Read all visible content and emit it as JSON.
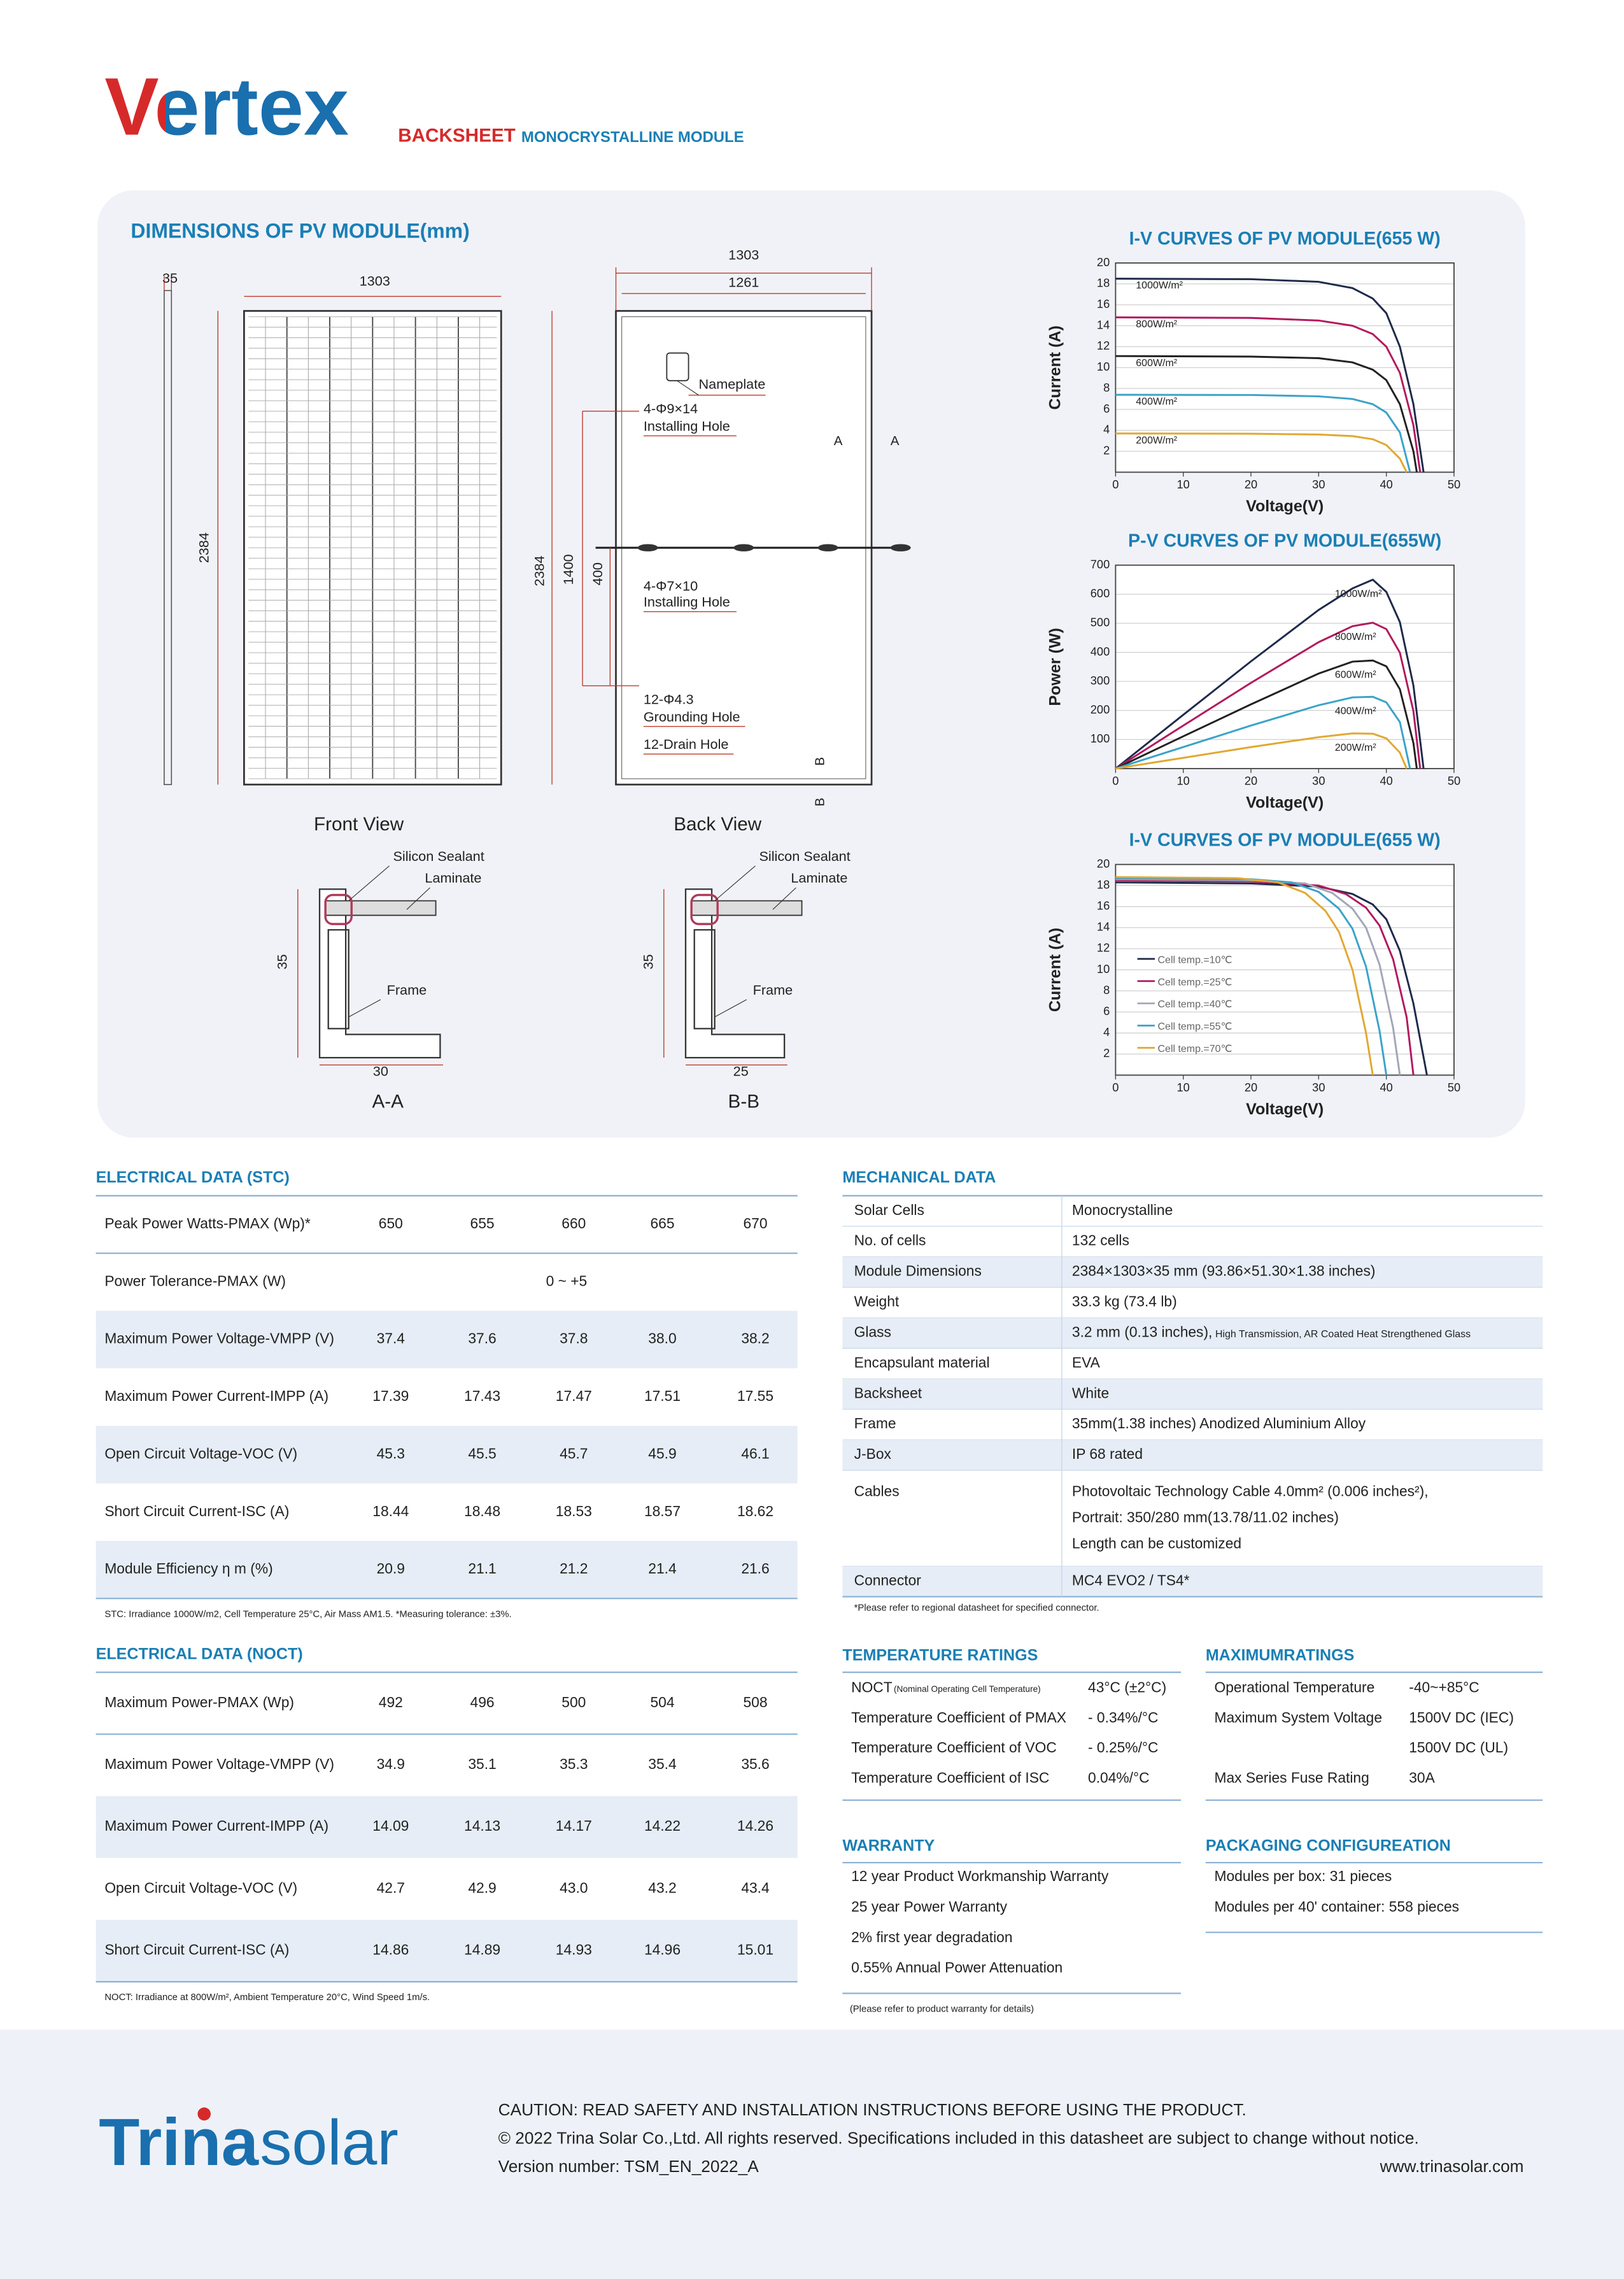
{
  "header": {
    "brand": "Vertex",
    "product_type": "BACKSHEET",
    "product_desc": "MONOCRYSTALLINE MODULE"
  },
  "dimensions": {
    "title": "DIMENSIONS OF PV MODULE(mm)",
    "front": {
      "thickness": "35",
      "width": "1303",
      "height": "2384",
      "caption": "Front View"
    },
    "back": {
      "width_outer": "1303",
      "width_inner": "1261",
      "height": "2384",
      "hole_span": "1400",
      "hole_offset": "400",
      "caption": "Back View",
      "section_a": [
        "A",
        "A"
      ],
      "section_b": [
        "B",
        "B"
      ],
      "callouts": [
        "Nameplate",
        "4-Φ9×14",
        "Installing Hole",
        "4-Φ7×10",
        "Installing Hole",
        "12-Φ4.3",
        "Grounding Hole",
        "12-Drain Hole"
      ]
    },
    "sections": [
      {
        "caption": "A-A",
        "height": "35",
        "width": "30",
        "labels": [
          "Silicon Sealant",
          "Laminate",
          "Frame"
        ]
      },
      {
        "caption": "B-B",
        "height": "35",
        "width": "25",
        "labels": [
          "Silicon Sealant",
          "Laminate",
          "Frame"
        ]
      }
    ]
  },
  "chart_data": [
    {
      "type": "line",
      "title": "I-V CURVES OF PV MODULE(655 W)",
      "x_label": "Voltage(V)",
      "y_label": "Current (A)",
      "xlim": [
        0,
        50
      ],
      "xticks": [
        0,
        10,
        20,
        30,
        40,
        50
      ],
      "ylim": [
        0,
        20
      ],
      "yticks": [
        2,
        4,
        6,
        8,
        10,
        12,
        14,
        16,
        18,
        20
      ],
      "grid": true,
      "series": [
        {
          "name": "1000W/m²",
          "color": "#1f2a4a",
          "x": [
            0,
            20,
            30,
            35,
            38,
            40,
            42,
            44,
            45.5
          ],
          "values": [
            18.5,
            18.45,
            18.2,
            17.6,
            16.6,
            15.2,
            12,
            6.5,
            0
          ]
        },
        {
          "name": "800W/m²",
          "color": "#b3195d",
          "x": [
            0,
            20,
            30,
            35,
            38,
            40,
            42,
            44,
            45
          ],
          "values": [
            14.8,
            14.75,
            14.5,
            14,
            13.2,
            12,
            9.5,
            4.5,
            0
          ]
        },
        {
          "name": "600W/m²",
          "color": "#222222",
          "x": [
            0,
            20,
            30,
            35,
            38,
            40,
            42,
            44,
            44.5
          ],
          "values": [
            11.1,
            11.05,
            10.9,
            10.5,
            9.8,
            8.8,
            6.5,
            2,
            0
          ]
        },
        {
          "name": "400W/m²",
          "color": "#3aa3c9",
          "x": [
            0,
            20,
            30,
            35,
            38,
            40,
            42,
            43.5
          ],
          "values": [
            7.4,
            7.38,
            7.25,
            7,
            6.5,
            5.7,
            3.8,
            0
          ]
        },
        {
          "name": "200W/m²",
          "color": "#e1a832",
          "x": [
            0,
            20,
            30,
            35,
            38,
            40,
            42,
            43
          ],
          "values": [
            3.7,
            3.68,
            3.6,
            3.45,
            3.15,
            2.6,
            1.3,
            0
          ]
        }
      ]
    },
    {
      "type": "line",
      "title": "P-V CURVES OF PV MODULE(655W)",
      "x_label": "Voltage(V)",
      "y_label": "Power (W)",
      "xlim": [
        0,
        50
      ],
      "xticks": [
        0,
        10,
        20,
        30,
        40,
        50
      ],
      "ylim": [
        0,
        700
      ],
      "yticks": [
        100,
        200,
        300,
        400,
        500,
        600,
        700
      ],
      "grid": true,
      "series": [
        {
          "name": "1000W/m²",
          "color": "#1f2a4a",
          "x": [
            0,
            10,
            20,
            30,
            35,
            38,
            40,
            42,
            44,
            45.5
          ],
          "values": [
            0,
            185,
            369,
            546,
            620,
            650,
            608,
            504,
            286,
            0
          ]
        },
        {
          "name": "800W/m²",
          "color": "#b3195d",
          "x": [
            0,
            10,
            20,
            30,
            35,
            38,
            40,
            42,
            44,
            45
          ],
          "values": [
            0,
            148,
            295,
            435,
            490,
            502,
            480,
            399,
            198,
            0
          ]
        },
        {
          "name": "600W/m²",
          "color": "#222222",
          "x": [
            0,
            10,
            20,
            30,
            35,
            38,
            40,
            42,
            44,
            44.5
          ],
          "values": [
            0,
            111,
            221,
            327,
            368,
            372,
            352,
            273,
            88,
            0
          ]
        },
        {
          "name": "400W/m²",
          "color": "#3aa3c9",
          "x": [
            0,
            10,
            20,
            30,
            35,
            38,
            40,
            42,
            43.5
          ],
          "values": [
            0,
            74,
            148,
            218,
            245,
            247,
            228,
            160,
            0
          ]
        },
        {
          "name": "200W/m²",
          "color": "#e1a832",
          "x": [
            0,
            10,
            20,
            30,
            35,
            38,
            40,
            42,
            43
          ],
          "values": [
            0,
            37,
            74,
            108,
            121,
            120,
            104,
            55,
            0
          ]
        }
      ]
    },
    {
      "type": "line",
      "title": "I-V CURVES OF PV MODULE(655 W)",
      "x_label": "Voltage(V)",
      "y_label": "Current (A)",
      "xlim": [
        0,
        50
      ],
      "xticks": [
        0,
        10,
        20,
        30,
        40,
        50
      ],
      "ylim": [
        0,
        20
      ],
      "yticks": [
        2,
        4,
        6,
        8,
        10,
        12,
        14,
        16,
        18,
        20
      ],
      "grid": true,
      "series": [
        {
          "name": "Cell temp.=10℃",
          "color": "#1f2a4a",
          "x": [
            0,
            20,
            30,
            35,
            38,
            40,
            42,
            44,
            46
          ],
          "values": [
            18.3,
            18.2,
            17.9,
            17.2,
            16.2,
            14.8,
            11.8,
            6.8,
            0
          ]
        },
        {
          "name": "Cell temp.=25℃",
          "color": "#b3195d",
          "x": [
            0,
            20,
            30,
            34,
            37,
            39,
            41,
            43,
            44
          ],
          "values": [
            18.5,
            18.4,
            18.0,
            17.2,
            15.9,
            14.2,
            11,
            5.5,
            0
          ]
        },
        {
          "name": "Cell temp.=40℃",
          "color": "#a3a6b8",
          "x": [
            0,
            20,
            28,
            32,
            35,
            37,
            39,
            41,
            42
          ],
          "values": [
            18.6,
            18.5,
            18.2,
            17.3,
            15.8,
            14,
            10.5,
            4.5,
            0
          ]
        },
        {
          "name": "Cell temp.=55℃",
          "color": "#3aa3c9",
          "x": [
            0,
            20,
            26,
            30,
            33,
            35,
            37,
            39,
            40
          ],
          "values": [
            18.7,
            18.6,
            18.3,
            17.4,
            15.8,
            13.9,
            10.3,
            4.2,
            0
          ]
        },
        {
          "name": "Cell temp.=70℃",
          "color": "#e1a832",
          "x": [
            0,
            18,
            24,
            28,
            31,
            33,
            35,
            37,
            38
          ],
          "values": [
            18.8,
            18.7,
            18.3,
            17.3,
            15.6,
            13.6,
            10,
            4,
            0
          ]
        }
      ]
    }
  ],
  "electrical_stc": {
    "title": "ELECTRICAL DATA (STC)",
    "rows": [
      [
        "Peak Power Watts-PMAX (Wp)*",
        "650",
        "655",
        "660",
        "665",
        "670"
      ],
      [
        "Power Tolerance-PMAX (W)",
        "0 ~ +5"
      ],
      [
        "Maximum Power Voltage-VMPP (V)",
        "37.4",
        "37.6",
        "37.8",
        "38.0",
        "38.2"
      ],
      [
        "Maximum Power Current-IMPP (A)",
        "17.39",
        "17.43",
        "17.47",
        "17.51",
        "17.55"
      ],
      [
        "Open Circuit Voltage-VOC (V)",
        "45.3",
        "45.5",
        "45.7",
        "45.9",
        "46.1"
      ],
      [
        "Short Circuit Current-ISC (A)",
        "18.44",
        "18.48",
        "18.53",
        "18.57",
        "18.62"
      ],
      [
        "Module Efficiency η m (%)",
        "20.9",
        "21.1",
        "21.2",
        "21.4",
        "21.6"
      ]
    ],
    "note": "STC: Irradiance 1000W/m2, Cell Temperature 25°C, Air Mass AM1.5.   *Measuring tolerance: ±3%."
  },
  "electrical_noct": {
    "title": "ELECTRICAL DATA (NOCT)",
    "rows": [
      [
        "Maximum Power-PMAX (Wp)",
        "492",
        "496",
        "500",
        "504",
        "508"
      ],
      [
        "Maximum Power Voltage-VMPP (V)",
        "34.9",
        "35.1",
        "35.3",
        "35.4",
        "35.6"
      ],
      [
        "Maximum Power Current-IMPP (A)",
        "14.09",
        "14.13",
        "14.17",
        "14.22",
        "14.26"
      ],
      [
        "Open Circuit Voltage-VOC (V)",
        "42.7",
        "42.9",
        "43.0",
        "43.2",
        "43.4"
      ],
      [
        "Short Circuit Current-ISC (A)",
        "14.86",
        "14.89",
        "14.93",
        "14.96",
        "15.01"
      ]
    ],
    "note": "NOCT: Irradiance at 800W/m², Ambient Temperature 20°C, Wind Speed 1m/s."
  },
  "mechanical": {
    "title": "MECHANICAL DATA",
    "rows": [
      {
        "label": "Solar Cells",
        "value": [
          "Monocrystalline"
        ]
      },
      {
        "label": "No. of cells",
        "value": [
          "132 cells"
        ]
      },
      {
        "label": "Module Dimensions",
        "value": [
          "2384×1303×35 mm (93.86×51.30×1.38 inches)"
        ]
      },
      {
        "label": "Weight",
        "value": [
          "33.3 kg (73.4 lb)"
        ]
      },
      {
        "label": "Glass",
        "value": [
          "3.2 mm (0.13 inches),"
        ],
        "note": "High Transmission, AR Coated Heat Strengthened Glass"
      },
      {
        "label": "Encapsulant material",
        "value": [
          "EVA"
        ]
      },
      {
        "label": "Backsheet",
        "value": [
          "White"
        ]
      },
      {
        "label": "Frame",
        "value": [
          "35mm(1.38 inches)  Anodized  Aluminium Alloy"
        ]
      },
      {
        "label": "J-Box",
        "value": [
          "IP 68 rated"
        ]
      },
      {
        "label": "Cables",
        "value": [
          "Photovoltaic Technology Cable 4.0mm² (0.006 inches²),",
          "Portrait: 350/280 mm(13.78/11.02 inches)",
          "Length can be customized"
        ]
      },
      {
        "label": "Connector",
        "value": [
          "MC4 EVO2 / TS4*"
        ]
      }
    ],
    "note": "*Please refer to regional datasheet for specified connector."
  },
  "temperature_ratings": {
    "title": "TEMPERATURE RATINGS",
    "rows": [
      {
        "label": "NOCT",
        "note": "(Nominal Operating Cell Temperature)",
        "value": "43°C (±2°C)"
      },
      {
        "label": "Temperature Coefficient of PMAX",
        "value": "- 0.34%/°C"
      },
      {
        "label": "Temperature Coefficient of VOC",
        "value": "- 0.25%/°C"
      },
      {
        "label": "Temperature Coefficient of ISC",
        "value": "0.04%/°C"
      }
    ]
  },
  "maximum_ratings": {
    "title": "MAXIMUMRATINGS",
    "rows": [
      {
        "label": "Operational Temperature",
        "value": "-40~+85°C"
      },
      {
        "label": "Maximum System Voltage",
        "value": "1500V DC (IEC)"
      },
      {
        "value": "1500V DC (UL)"
      },
      {
        "label": "Max Series Fuse Rating",
        "value": "30A"
      }
    ]
  },
  "warranty": {
    "title": "WARRANTY",
    "items": [
      "12 year Product Workmanship Warranty",
      "25 year Power Warranty",
      "2% first year degradation",
      "0.55% Annual Power Attenuation"
    ],
    "note": "(Please refer to product warranty for details)"
  },
  "packaging": {
    "title": "PACKAGING CONFIGUREATION",
    "items": [
      "Modules per box: 31 pieces",
      "Modules per 40' container:  558 pieces"
    ]
  },
  "footer": {
    "logo": [
      "Trina",
      "solar"
    ],
    "lines": [
      "CAUTION: READ SAFETY AND INSTALLATION INSTRUCTIONS BEFORE USING THE PRODUCT.",
      "© 2022 Trina Solar Co.,Ltd. All rights reserved. Specifications included in this datasheet are subject to change without notice.",
      "Version number: TSM_EN_2022_A"
    ],
    "website": "www.trinasolar.com"
  }
}
